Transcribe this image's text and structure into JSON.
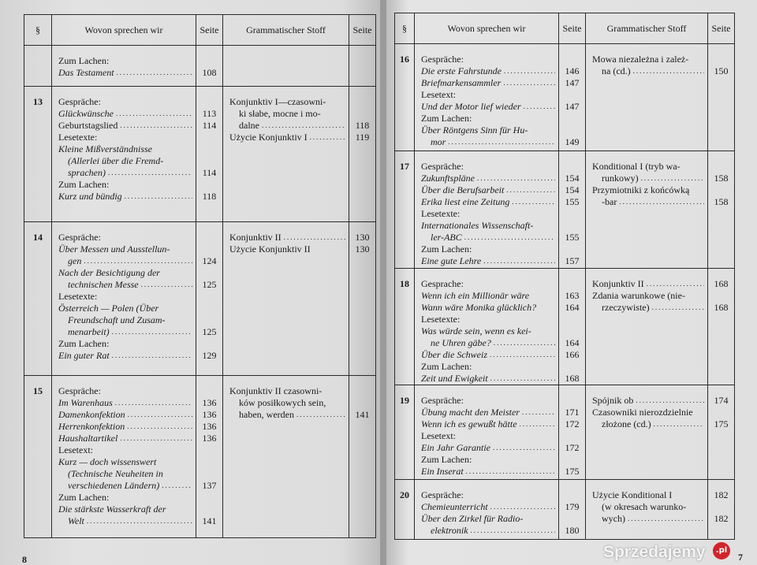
{
  "headers": {
    "section": "§",
    "topics": "Wovon sprechen wir",
    "page": "Seite",
    "grammar": "Grammatischer Stoff",
    "page2": "Seite"
  },
  "left": [
    {
      "num": "",
      "topics": [
        {
          "t": "Zum Lachen:"
        },
        {
          "t": "Das Testament",
          "i": 1,
          "d": 1,
          "p": "108"
        }
      ],
      "grammar": []
    },
    {
      "num": "13",
      "topics": [
        {
          "t": "Gespräche:"
        },
        {
          "t": "Glückwünsche",
          "i": 1,
          "d": 1,
          "p": "113"
        },
        {
          "t": "Geburtstagslied",
          "d": 1,
          "p": "114"
        },
        {
          "t": "Lesetexte:"
        },
        {
          "t": "Kleine Mißverständnisse",
          "i": 1
        },
        {
          "t": "(Allerlei über die Fremd-",
          "i": 1,
          "n": 1
        },
        {
          "t": "sprachen)",
          "i": 1,
          "n": 1,
          "d": 1,
          "p": "114"
        },
        {
          "t": "Zum Lachen:"
        },
        {
          "t": "Kurz und bündig",
          "i": 1,
          "d": 1,
          "p": "118"
        }
      ],
      "grammar": [
        {
          "t": "Konjunktiv I—czasowni-"
        },
        {
          "t": "ki słabe, mocne i mo-",
          "n": 1
        },
        {
          "t": "dalne",
          "n": 1,
          "d": 1,
          "p": "118"
        },
        {
          "t": "Użycie Konjunktiv I",
          "d": 1,
          "p": "119"
        }
      ]
    },
    {
      "num": "14",
      "topics": [
        {
          "t": "Gespräche:"
        },
        {
          "t": "Über Messen und Ausstellun-",
          "i": 1
        },
        {
          "t": "gen",
          "i": 1,
          "n": 1,
          "d": 1,
          "p": "124"
        },
        {
          "t": "Nach der Besichtigung der",
          "i": 1
        },
        {
          "t": "technischen Messe",
          "i": 1,
          "n": 1,
          "d": 1,
          "p": "125"
        },
        {
          "t": "Lesetexte:"
        },
        {
          "t": "Österreich — Polen (Über",
          "i": 1
        },
        {
          "t": "Freundschaft und Zusam-",
          "i": 1,
          "n": 1
        },
        {
          "t": "menarbeit)",
          "i": 1,
          "n": 1,
          "d": 1,
          "p": "125"
        },
        {
          "t": "Zum Lachen:"
        },
        {
          "t": "Ein guter Rat",
          "i": 1,
          "d": 1,
          "p": "129"
        }
      ],
      "grammar": [
        {
          "t": "Konjunktiv II",
          "d": 1,
          "p": "130"
        },
        {
          "t": "Użycie Konjunktiv II",
          "p": "130"
        }
      ]
    },
    {
      "num": "15",
      "topics": [
        {
          "t": "Gespräche:"
        },
        {
          "t": "Im Warenhaus",
          "i": 1,
          "d": 1,
          "p": "136"
        },
        {
          "t": "Damenkonfektion",
          "i": 1,
          "d": 1,
          "p": "136"
        },
        {
          "t": "Herrenkonfektion",
          "i": 1,
          "d": 1,
          "p": "136"
        },
        {
          "t": "Haushaltartikel",
          "i": 1,
          "d": 1,
          "p": "136"
        },
        {
          "t": "Lesetext:"
        },
        {
          "t": "Kurz — doch wissenswert",
          "i": 1
        },
        {
          "t": "(Technische Neuheiten in",
          "i": 1,
          "n": 1
        },
        {
          "t": "verschiedenen Ländern)",
          "i": 1,
          "n": 1,
          "d": 1,
          "p": "137"
        },
        {
          "t": "Zum Lachen:"
        },
        {
          "t": "Die stärkste Wasserkraft der",
          "i": 1
        },
        {
          "t": "Welt",
          "i": 1,
          "n": 1,
          "d": 1,
          "p": "141"
        }
      ],
      "grammar": [
        {
          "t": "Konjunktiv II czasowni-"
        },
        {
          "t": "ków posiłkowych sein,",
          "n": 1
        },
        {
          "t": "haben, werden",
          "n": 1,
          "d": 1,
          "p": "141"
        }
      ]
    }
  ],
  "right": [
    {
      "num": "16",
      "topics": [
        {
          "t": "Gespräche:"
        },
        {
          "t": "Die erste Fahrstunde",
          "i": 1,
          "d": 1,
          "p": "146"
        },
        {
          "t": "Briefmarkensammler",
          "i": 1,
          "d": 1,
          "p": "147"
        },
        {
          "t": "Lesetext:"
        },
        {
          "t": "Und der Motor lief wieder",
          "i": 1,
          "d": 1,
          "p": "147"
        },
        {
          "t": "Zum Lachen:"
        },
        {
          "t": "Über Röntgens Sinn für Hu-",
          "i": 1
        },
        {
          "t": "mor",
          "i": 1,
          "n": 1,
          "d": 1,
          "p": "149"
        }
      ],
      "grammar": [
        {
          "t": "Mowa niezależna i zależ-"
        },
        {
          "t": "na (cd.)",
          "n": 1,
          "d": 1,
          "p": "150"
        }
      ]
    },
    {
      "num": "17",
      "topics": [
        {
          "t": "Gespräche:"
        },
        {
          "t": "Zukunftspläne",
          "i": 1,
          "d": 1,
          "p": "154"
        },
        {
          "t": "Über die Berufsarbeit",
          "i": 1,
          "d": 1,
          "p": "154"
        },
        {
          "t": "Erika liest eine Zeitung",
          "i": 1,
          "d": 1,
          "p": "155"
        },
        {
          "t": "Lesetexte:"
        },
        {
          "t": "Internationales Wissenschaft-",
          "i": 1
        },
        {
          "t": "ler-ABC",
          "i": 1,
          "n": 1,
          "d": 1,
          "p": "155"
        },
        {
          "t": "Zum Lachen:"
        },
        {
          "t": "Eine gute Lehre",
          "i": 1,
          "d": 1,
          "p": "157"
        }
      ],
      "grammar": [
        {
          "t": "Konditional I (tryb wa-"
        },
        {
          "t": "runkowy)",
          "n": 1,
          "d": 1,
          "p": "158"
        },
        {
          "t": "Przymiotniki z końcówką"
        },
        {
          "t": "-bar",
          "n": 1,
          "d": 1,
          "p": "158"
        }
      ]
    },
    {
      "num": "18",
      "topics": [
        {
          "t": "Gesprache:"
        },
        {
          "t": "Wenn ich ein Millionär wäre",
          "i": 1,
          "p": "163"
        },
        {
          "t": "Wann wäre Monika glücklich?",
          "i": 1,
          "p": "164"
        },
        {
          "t": "Lesetexte:"
        },
        {
          "t": "Was würde sein, wenn es kei-",
          "i": 1
        },
        {
          "t": "ne Uhren gäbe?",
          "i": 1,
          "n": 1,
          "d": 1,
          "p": "164"
        },
        {
          "t": "Über die Schweiz",
          "i": 1,
          "d": 1,
          "p": "166"
        },
        {
          "t": "Zum Lachen:"
        },
        {
          "t": "Zeit und Ewigkeit",
          "i": 1,
          "d": 1,
          "p": "168"
        }
      ],
      "grammar": [
        {
          "t": "Konjunktiv II",
          "d": 1,
          "p": "168"
        },
        {
          "t": "Zdania warunkowe (nie-"
        },
        {
          "t": "rzeczywiste)",
          "n": 1,
          "d": 1,
          "p": "168"
        }
      ]
    },
    {
      "num": "19",
      "topics": [
        {
          "t": "Gespräche:"
        },
        {
          "t": "Übung macht den Meister",
          "i": 1,
          "d": 1,
          "p": "171"
        },
        {
          "t": "Wenn ich es gewußt hätte",
          "i": 1,
          "d": 1,
          "p": "172"
        },
        {
          "t": "Lesetext:"
        },
        {
          "t": "Ein Jahr Garantie",
          "i": 1,
          "d": 1,
          "p": "172"
        },
        {
          "t": "Zum Lachen:"
        },
        {
          "t": "Ein Inserat",
          "i": 1,
          "d": 1,
          "p": "175"
        }
      ],
      "grammar": [
        {
          "t": "Spójnik ob",
          "d": 1,
          "p": "174"
        },
        {
          "t": "Czasowniki nierozdzielnie"
        },
        {
          "t": "złożone (cd.)",
          "n": 1,
          "d": 1,
          "p": "175"
        }
      ]
    },
    {
      "num": "20",
      "topics": [
        {
          "t": "Gespräche:"
        },
        {
          "t": "Chemieunterricht",
          "i": 1,
          "d": 1,
          "p": "179"
        },
        {
          "t": "Über den Zirkel für Radio-",
          "i": 1
        },
        {
          "t": "elektronik",
          "i": 1,
          "n": 1,
          "d": 1,
          "p": "180"
        }
      ],
      "grammar": [
        {
          "t": "Użycie Konditional I",
          "p": "182"
        },
        {
          "t": "(w okresach warunko-",
          "n": 1
        },
        {
          "t": "wych)",
          "n": 1,
          "d": 1,
          "p": "182"
        }
      ]
    }
  ],
  "page_numbers": {
    "left": "8",
    "right": "7"
  },
  "watermark": "Sprzedajemy",
  "watermark_badge": ".pl"
}
